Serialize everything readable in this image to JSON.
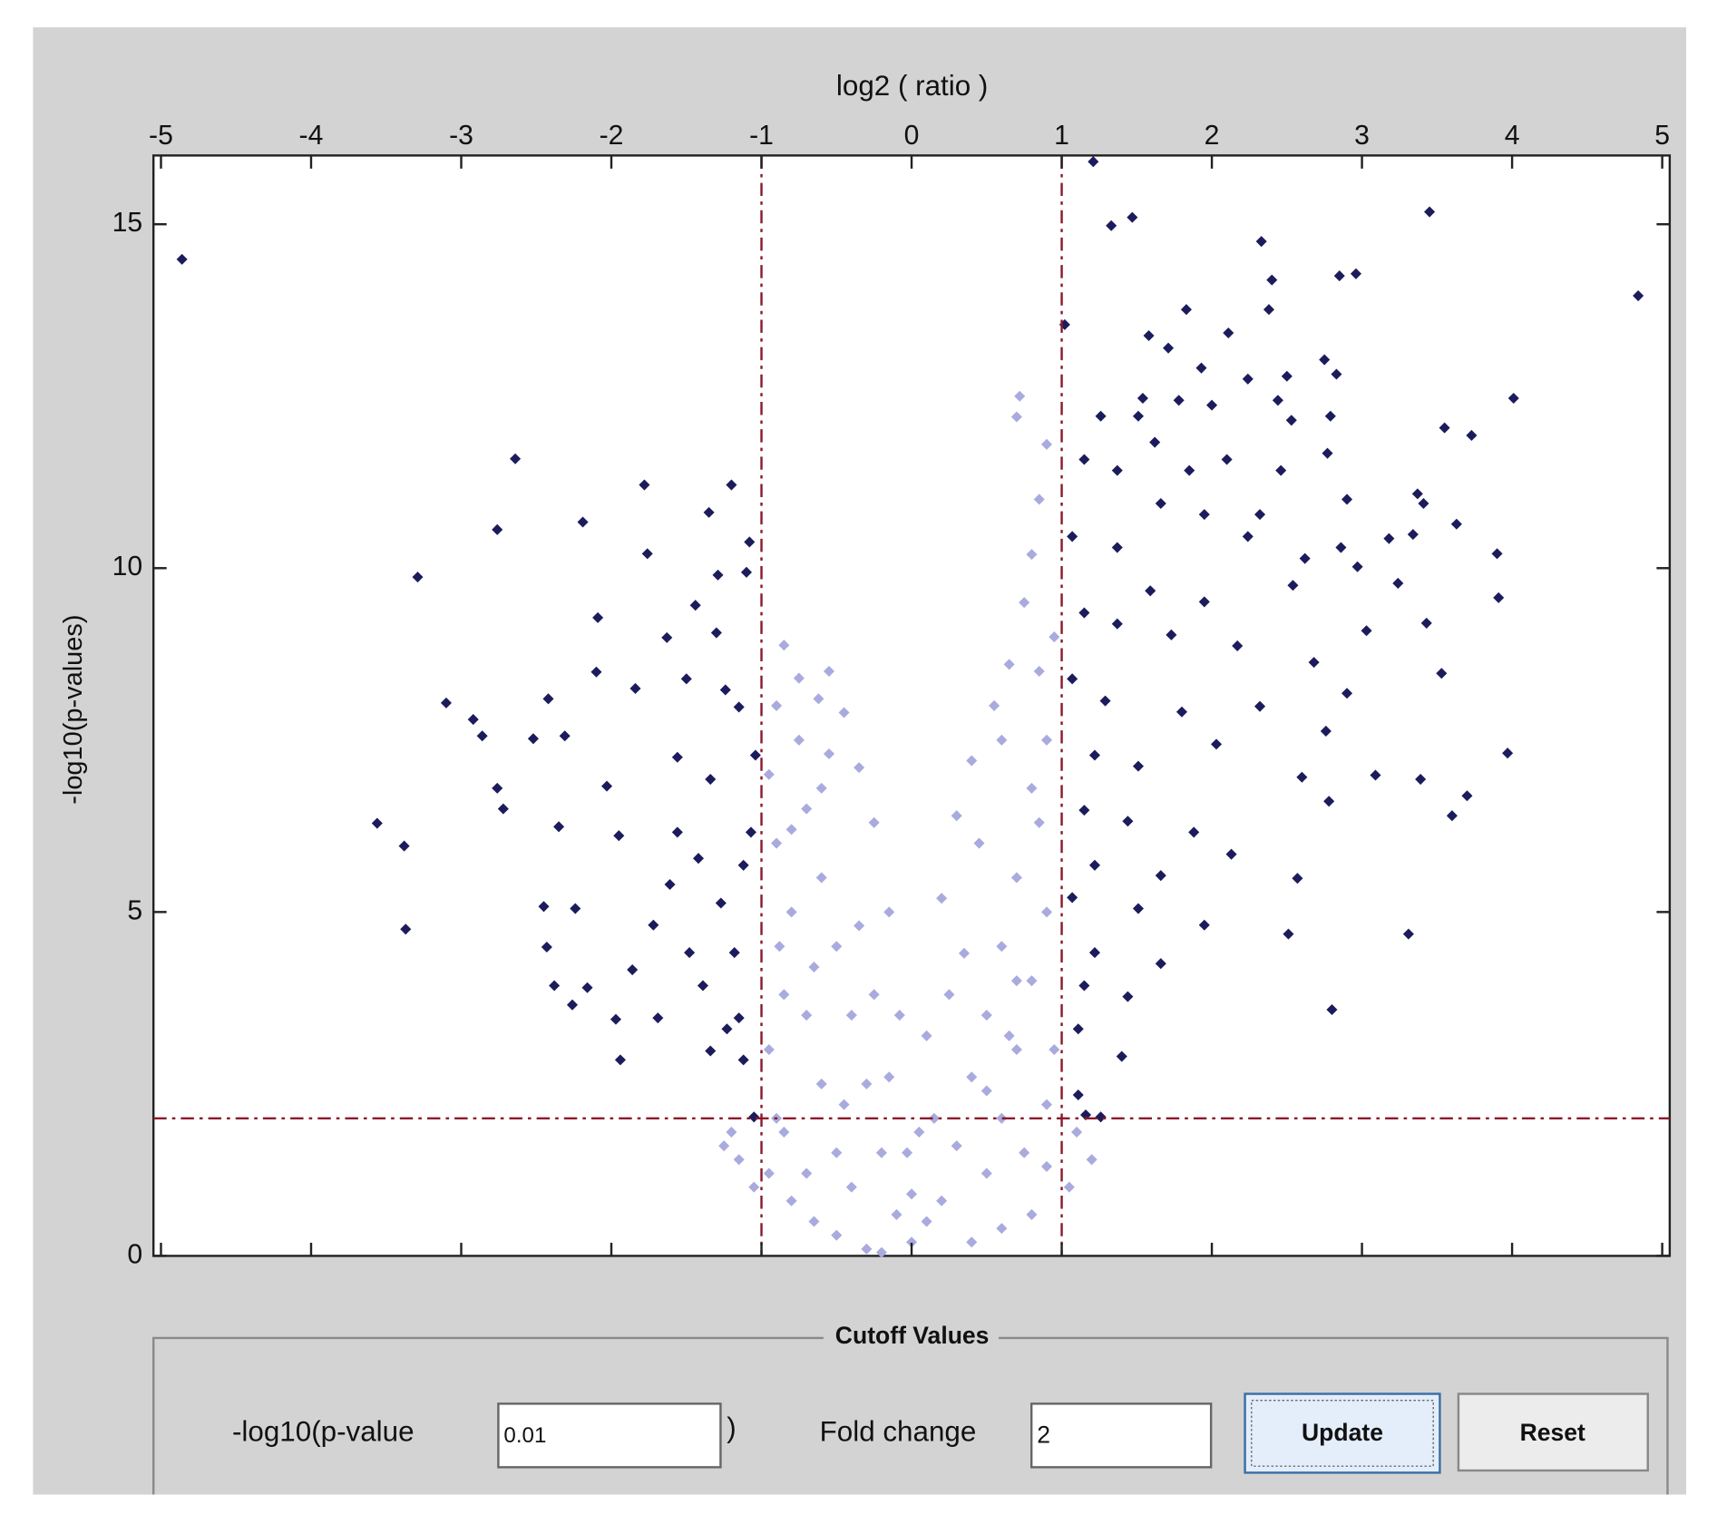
{
  "chart_data": {
    "type": "scatter",
    "xlabel": "log2 ( ratio )",
    "ylabel": "-log10(p-values)",
    "xlim": [
      -5.05,
      5.05
    ],
    "ylim": [
      0,
      16
    ],
    "xticks": [
      -5,
      -4,
      -3,
      -2,
      -1,
      0,
      1,
      2,
      3,
      4,
      5
    ],
    "yticks": [
      0,
      5,
      10,
      15
    ],
    "reference_lines": {
      "x": [
        -1,
        1
      ],
      "y": [
        2
      ],
      "color": "#8b1a2a"
    },
    "series": [
      {
        "color": "#a9abde",
        "x": [
          -0.85,
          -0.75,
          -0.62,
          -0.55,
          -0.45,
          -0.35,
          -0.25,
          -0.15,
          -0.08,
          -0.03,
          0,
          0.05,
          0.1,
          0.2,
          0.3,
          0.4,
          0.55,
          0.65,
          0.75,
          0.8,
          0.85,
          0.9,
          0.72,
          0.7,
          -0.95,
          -0.9,
          -0.88,
          -0.95,
          -0.9,
          -0.95,
          -0.8,
          -0.65,
          -0.5,
          -0.3,
          -0.2,
          -1.2,
          -1.25,
          -1.15,
          -1.05,
          1.05,
          1.2,
          1.1,
          0.8,
          0.6,
          0.4,
          -0.7,
          -0.6,
          -0.5,
          -0.4,
          -0.3,
          -0.2,
          -0.8,
          -0.7,
          -0.6,
          -0.5,
          -0.4,
          -0.85,
          0.9,
          0.8,
          0.7,
          0.6,
          0.5,
          0.4,
          0.3,
          0.2,
          0.9,
          0.8,
          0.7,
          0.6,
          0.5,
          0.95,
          0.9,
          0.95,
          0.85,
          0.6,
          0.45,
          -0.55,
          -0.75,
          -0.9,
          -0.7,
          -0.85,
          0.75,
          0.9,
          0.1,
          -0.1,
          0.15,
          -0.65,
          -0.45,
          -0.35,
          -0.25,
          0.25,
          0.35,
          0.5,
          0.65,
          -0.8,
          -0.6,
          0.85,
          0.7,
          -0.15,
          0.0
        ],
        "values": [
          8.88,
          8.4,
          8.1,
          8.5,
          7.9,
          7.1,
          6.3,
          5.0,
          3.5,
          1.5,
          0.2,
          1.8,
          3.2,
          5.2,
          6.4,
          7.2,
          8.0,
          8.6,
          9.5,
          10.2,
          11.0,
          11.8,
          12.5,
          12.2,
          7.0,
          6.0,
          4.5,
          3.0,
          2.0,
          1.2,
          0.8,
          0.5,
          0.3,
          0.1,
          0.05,
          1.8,
          1.6,
          1.4,
          1.0,
          1.0,
          1.4,
          1.8,
          0.6,
          0.4,
          0.2,
          6.5,
          5.5,
          4.5,
          3.5,
          2.5,
          1.5,
          5.0,
          3.5,
          2.5,
          1.5,
          1.0,
          3.8,
          7.5,
          6.8,
          5.5,
          4.5,
          3.5,
          2.6,
          1.6,
          0.8,
          5.0,
          4.0,
          3.0,
          2.0,
          1.2,
          3.0,
          2.2,
          9.0,
          8.5,
          7.5,
          6.0,
          7.3,
          7.5,
          8.0,
          1.2,
          1.8,
          1.5,
          1.3,
          0.5,
          0.6,
          2.0,
          4.2,
          2.2,
          4.8,
          3.8,
          3.8,
          4.4,
          2.4,
          3.2,
          6.2,
          6.8,
          6.3,
          4.0,
          2.6,
          0.9
        ]
      },
      {
        "color": "#1c1c5c",
        "x": [
          -4.86,
          -3.56,
          -3.38,
          -3.37,
          -3.29,
          -3.1,
          -2.92,
          -2.86,
          -2.76,
          -2.72,
          -2.76,
          -2.64,
          -2.52,
          -2.45,
          -2.43,
          -2.42,
          -2.38,
          -2.35,
          -2.31,
          -2.26,
          -2.24,
          -2.19,
          -2.16,
          -2.09,
          -2.1,
          -2.03,
          -1.95,
          -1.97,
          -1.94,
          -1.86,
          -1.84,
          -1.78,
          -1.76,
          -1.72,
          -1.69,
          -1.63,
          -1.61,
          -1.56,
          -1.5,
          -1.44,
          -1.42,
          -1.39,
          -1.35,
          -1.34,
          -1.3,
          -1.29,
          -1.27,
          -1.24,
          -1.2,
          -1.18,
          -1.15,
          -1.12,
          -1.1,
          -1.08,
          -1.07,
          -1.05,
          -1.04,
          -1.12,
          -1.15,
          -1.23,
          -1.34,
          -1.48,
          -1.56,
          1.02,
          1.21,
          1.33,
          1.47,
          3.45,
          2.33,
          2.4,
          2.85,
          2.96,
          4.84,
          2.38,
          1.83,
          2.11,
          1.58,
          1.71,
          2.75,
          1.93,
          2.83,
          2.24,
          2.5,
          1.54,
          1.78,
          2.0,
          2.44,
          4.01,
          1.26,
          1.51,
          2.53,
          2.79,
          3.55,
          3.73,
          1.62,
          2.77,
          1.15,
          1.37,
          1.85,
          2.1,
          2.46,
          3.37,
          3.41,
          2.9,
          1.66,
          1.95,
          2.32,
          3.63,
          1.07,
          1.37,
          2.24,
          3.18,
          3.34,
          3.9,
          2.86,
          2.62,
          2.97,
          3.91,
          3.24,
          1.59,
          1.95,
          2.54,
          3.43,
          3.03,
          1.15,
          1.37,
          1.73,
          2.17,
          2.68,
          3.53,
          2.9,
          1.07,
          1.29,
          1.8,
          2.32,
          2.76,
          2.03,
          3.97,
          1.22,
          1.51,
          2.6,
          3.09,
          3.39,
          3.7,
          2.78,
          3.6,
          1.15,
          1.44,
          1.88,
          2.13,
          1.22,
          1.66,
          2.57,
          1.07,
          1.51,
          1.95,
          2.51,
          3.31,
          1.22,
          1.66,
          1.15,
          1.44,
          2.8,
          1.11,
          1.4,
          1.11,
          1.16,
          1.26
        ],
        "values": [
          14.49,
          6.29,
          5.96,
          4.75,
          9.87,
          8.04,
          7.8,
          7.56,
          6.8,
          6.5,
          10.56,
          11.59,
          7.52,
          5.08,
          4.49,
          8.1,
          3.93,
          6.24,
          7.56,
          3.65,
          5.05,
          10.67,
          3.9,
          9.28,
          8.49,
          6.83,
          6.11,
          3.44,
          2.85,
          4.16,
          8.25,
          11.21,
          10.21,
          4.81,
          3.46,
          8.99,
          5.4,
          7.25,
          8.39,
          9.46,
          5.78,
          3.93,
          10.81,
          6.93,
          9.06,
          9.9,
          5.13,
          8.23,
          11.21,
          4.41,
          7.98,
          2.85,
          9.94,
          10.38,
          6.16,
          2.02,
          7.28,
          5.68,
          3.46,
          3.3,
          2.98,
          4.41,
          6.16,
          13.54,
          15.91,
          14.98,
          15.1,
          15.18,
          14.75,
          14.19,
          14.25,
          14.28,
          13.96,
          13.76,
          13.76,
          13.42,
          13.38,
          13.2,
          13.03,
          12.91,
          12.82,
          12.75,
          12.79,
          12.47,
          12.44,
          12.37,
          12.44,
          12.47,
          12.21,
          12.21,
          12.15,
          12.21,
          12.04,
          11.93,
          11.83,
          11.67,
          11.58,
          11.42,
          11.42,
          11.58,
          11.42,
          11.08,
          10.94,
          11.0,
          10.94,
          10.78,
          10.78,
          10.64,
          10.46,
          10.3,
          10.46,
          10.43,
          10.49,
          10.21,
          10.3,
          10.14,
          10.02,
          9.57,
          9.78,
          9.67,
          9.51,
          9.75,
          9.2,
          9.09,
          9.35,
          9.19,
          9.03,
          8.87,
          8.63,
          8.47,
          8.18,
          8.39,
          8.07,
          7.91,
          7.99,
          7.63,
          7.44,
          7.31,
          7.28,
          7.12,
          6.96,
          6.99,
          6.93,
          6.69,
          6.61,
          6.4,
          6.48,
          6.32,
          6.16,
          5.84,
          5.68,
          5.53,
          5.49,
          5.21,
          5.05,
          4.81,
          4.68,
          4.68,
          4.41,
          4.25,
          3.93,
          3.77,
          3.58,
          3.3,
          2.9,
          2.34,
          2.05,
          2.02
        ]
      }
    ]
  },
  "cutoff_panel": {
    "title": "Cutoff Values",
    "pvalue_label": "-log10(p-value",
    "pvalue_input": "0.01",
    "close_paren": ")",
    "fold_change_label": "Fold change",
    "fold_change_input": "2",
    "update_button": "Update",
    "reset_button": "Reset"
  }
}
